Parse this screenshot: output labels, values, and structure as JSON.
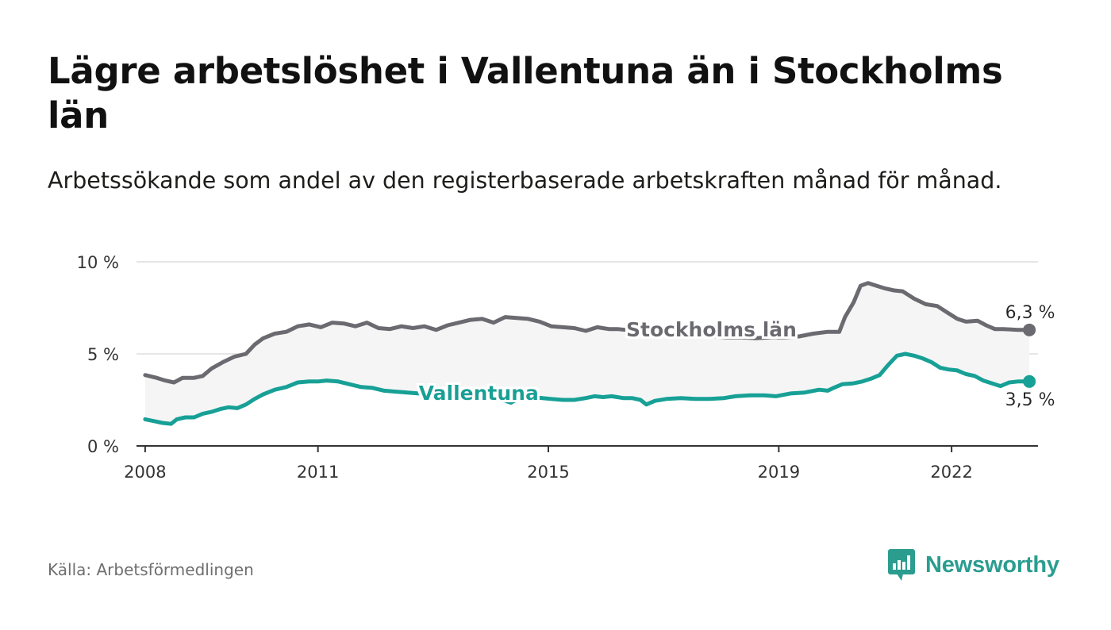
{
  "title": "Lägre arbetslöshet i Vallentuna än i Stockholms län",
  "subtitle": "Arbetssökande som andel av den registerbaserade arbetskraften månad för månad.",
  "source": "Källa: Arbetsförmedlingen",
  "brand": "Newsworthy",
  "colors": {
    "stockholm": "#6b6a70",
    "vallentuna": "#17a096",
    "band": "#f5f5f5",
    "grid": "#dddddd",
    "axis": "#333333"
  },
  "chart_data": {
    "type": "line",
    "title": "Lägre arbetslöshet i Vallentuna än i Stockholms län",
    "xlabel": "",
    "ylabel": "",
    "xlim": [
      2007.85,
      2023.5
    ],
    "ylim": [
      0,
      10
    ],
    "x_ticks": [
      {
        "value": 2008,
        "label": "2008"
      },
      {
        "value": 2011,
        "label": "2011"
      },
      {
        "value": 2015,
        "label": "2015"
      },
      {
        "value": 2019,
        "label": "2019"
      },
      {
        "value": 2022,
        "label": "2022"
      }
    ],
    "y_ticks": [
      {
        "value": 0,
        "label": "0 %"
      },
      {
        "value": 5,
        "label": "5 %"
      },
      {
        "value": 10,
        "label": "10 %"
      }
    ],
    "grid": true,
    "series": [
      {
        "key": "stockholm",
        "name": "Stockholms län",
        "end_label": "6,3 %",
        "label_position": 2016.3,
        "points": [
          [
            2008.0,
            3.85
          ],
          [
            2008.2,
            3.7
          ],
          [
            2008.35,
            3.55
          ],
          [
            2008.5,
            3.45
          ],
          [
            2008.65,
            3.7
          ],
          [
            2008.85,
            3.7
          ],
          [
            2009.0,
            3.8
          ],
          [
            2009.15,
            4.2
          ],
          [
            2009.35,
            4.55
          ],
          [
            2009.55,
            4.85
          ],
          [
            2009.75,
            5.0
          ],
          [
            2009.9,
            5.5
          ],
          [
            2010.05,
            5.85
          ],
          [
            2010.25,
            6.1
          ],
          [
            2010.45,
            6.2
          ],
          [
            2010.65,
            6.5
          ],
          [
            2010.85,
            6.6
          ],
          [
            2011.05,
            6.45
          ],
          [
            2011.25,
            6.7
          ],
          [
            2011.45,
            6.65
          ],
          [
            2011.65,
            6.5
          ],
          [
            2011.85,
            6.7
          ],
          [
            2012.05,
            6.4
          ],
          [
            2012.25,
            6.35
          ],
          [
            2012.45,
            6.5
          ],
          [
            2012.65,
            6.4
          ],
          [
            2012.85,
            6.5
          ],
          [
            2013.05,
            6.3
          ],
          [
            2013.25,
            6.55
          ],
          [
            2013.45,
            6.7
          ],
          [
            2013.65,
            6.85
          ],
          [
            2013.85,
            6.9
          ],
          [
            2014.05,
            6.7
          ],
          [
            2014.25,
            7.0
          ],
          [
            2014.45,
            6.95
          ],
          [
            2014.65,
            6.9
          ],
          [
            2014.85,
            6.75
          ],
          [
            2015.05,
            6.5
          ],
          [
            2015.25,
            6.45
          ],
          [
            2015.45,
            6.4
          ],
          [
            2015.65,
            6.25
          ],
          [
            2015.85,
            6.45
          ],
          [
            2016.05,
            6.35
          ],
          [
            2016.2,
            6.35
          ],
          [
            2016.35,
            6.3
          ],
          [
            2016.6,
            6.2
          ],
          [
            2016.85,
            6.15
          ],
          [
            2017.1,
            6.1
          ],
          [
            2017.35,
            6.05
          ],
          [
            2017.6,
            6.0
          ],
          [
            2017.85,
            5.95
          ],
          [
            2018.1,
            5.9
          ],
          [
            2018.35,
            5.9
          ],
          [
            2018.6,
            5.85
          ],
          [
            2018.85,
            5.9
          ],
          [
            2019.1,
            5.9
          ],
          [
            2019.35,
            5.95
          ],
          [
            2019.6,
            6.1
          ],
          [
            2019.85,
            6.2
          ],
          [
            2020.05,
            6.2
          ],
          [
            2020.15,
            7.0
          ],
          [
            2020.3,
            7.8
          ],
          [
            2020.42,
            8.7
          ],
          [
            2020.55,
            8.85
          ],
          [
            2020.7,
            8.7
          ],
          [
            2020.85,
            8.55
          ],
          [
            2021.0,
            8.45
          ],
          [
            2021.15,
            8.4
          ],
          [
            2021.35,
            8.0
          ],
          [
            2021.55,
            7.7
          ],
          [
            2021.75,
            7.6
          ],
          [
            2021.95,
            7.2
          ],
          [
            2022.1,
            6.9
          ],
          [
            2022.25,
            6.75
          ],
          [
            2022.45,
            6.8
          ],
          [
            2022.6,
            6.55
          ],
          [
            2022.75,
            6.35
          ],
          [
            2022.9,
            6.35
          ],
          [
            2023.15,
            6.3
          ],
          [
            2023.35,
            6.3
          ]
        ]
      },
      {
        "key": "vallentuna",
        "name": "Vallentuna",
        "end_label": "3,5 %",
        "label_position": 2012.75,
        "points": [
          [
            2008.0,
            1.45
          ],
          [
            2008.15,
            1.35
          ],
          [
            2008.3,
            1.25
          ],
          [
            2008.45,
            1.2
          ],
          [
            2008.55,
            1.45
          ],
          [
            2008.7,
            1.55
          ],
          [
            2008.85,
            1.55
          ],
          [
            2009.0,
            1.75
          ],
          [
            2009.15,
            1.85
          ],
          [
            2009.3,
            2.0
          ],
          [
            2009.45,
            2.1
          ],
          [
            2009.6,
            2.05
          ],
          [
            2009.75,
            2.25
          ],
          [
            2009.9,
            2.55
          ],
          [
            2010.05,
            2.8
          ],
          [
            2010.25,
            3.05
          ],
          [
            2010.45,
            3.2
          ],
          [
            2010.65,
            3.45
          ],
          [
            2010.85,
            3.5
          ],
          [
            2011.0,
            3.5
          ],
          [
            2011.15,
            3.55
          ],
          [
            2011.35,
            3.5
          ],
          [
            2011.55,
            3.35
          ],
          [
            2011.75,
            3.2
          ],
          [
            2011.95,
            3.15
          ],
          [
            2012.15,
            3.0
          ],
          [
            2012.35,
            2.95
          ],
          [
            2012.55,
            2.9
          ],
          [
            2012.75,
            2.85
          ],
          [
            2012.95,
            2.8
          ],
          [
            2013.15,
            2.8
          ],
          [
            2013.35,
            2.75
          ],
          [
            2013.55,
            2.7
          ],
          [
            2013.75,
            2.65
          ],
          [
            2013.95,
            2.65
          ],
          [
            2014.1,
            2.55
          ],
          [
            2014.25,
            2.45
          ],
          [
            2014.35,
            2.35
          ],
          [
            2014.5,
            2.6
          ],
          [
            2014.7,
            2.65
          ],
          [
            2014.9,
            2.6
          ],
          [
            2015.05,
            2.55
          ],
          [
            2015.25,
            2.5
          ],
          [
            2015.45,
            2.5
          ],
          [
            2015.65,
            2.6
          ],
          [
            2015.8,
            2.7
          ],
          [
            2015.95,
            2.65
          ],
          [
            2016.1,
            2.7
          ],
          [
            2016.3,
            2.6
          ],
          [
            2016.45,
            2.6
          ],
          [
            2016.6,
            2.5
          ],
          [
            2016.7,
            2.25
          ],
          [
            2016.85,
            2.45
          ],
          [
            2017.05,
            2.55
          ],
          [
            2017.3,
            2.6
          ],
          [
            2017.55,
            2.55
          ],
          [
            2017.8,
            2.55
          ],
          [
            2018.05,
            2.6
          ],
          [
            2018.25,
            2.7
          ],
          [
            2018.5,
            2.75
          ],
          [
            2018.75,
            2.75
          ],
          [
            2018.95,
            2.7
          ],
          [
            2019.2,
            2.85
          ],
          [
            2019.45,
            2.9
          ],
          [
            2019.7,
            3.05
          ],
          [
            2019.85,
            3.0
          ],
          [
            2019.95,
            3.15
          ],
          [
            2020.1,
            3.35
          ],
          [
            2020.3,
            3.4
          ],
          [
            2020.45,
            3.5
          ],
          [
            2020.6,
            3.65
          ],
          [
            2020.75,
            3.85
          ],
          [
            2020.9,
            4.4
          ],
          [
            2021.05,
            4.9
          ],
          [
            2021.2,
            5.0
          ],
          [
            2021.35,
            4.9
          ],
          [
            2021.5,
            4.75
          ],
          [
            2021.65,
            4.55
          ],
          [
            2021.8,
            4.25
          ],
          [
            2021.95,
            4.15
          ],
          [
            2022.1,
            4.1
          ],
          [
            2022.25,
            3.9
          ],
          [
            2022.4,
            3.8
          ],
          [
            2022.55,
            3.55
          ],
          [
            2022.7,
            3.4
          ],
          [
            2022.85,
            3.25
          ],
          [
            2023.0,
            3.45
          ],
          [
            2023.15,
            3.5
          ],
          [
            2023.35,
            3.5
          ]
        ]
      }
    ]
  }
}
